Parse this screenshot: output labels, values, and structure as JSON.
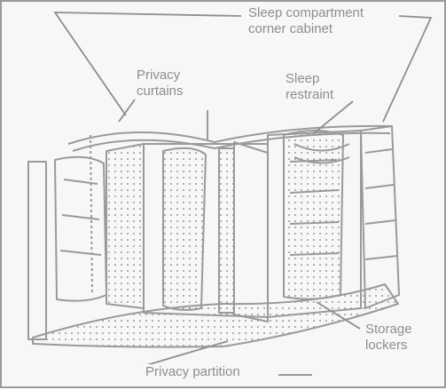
{
  "figure": {
    "labels": {
      "sleep_cabinet_line1": "Sleep compartment",
      "sleep_cabinet_line2": "corner cabinet",
      "privacy_curtains_line1": "Privacy",
      "privacy_curtains_line2": "curtains",
      "sleep_restraint_line1": "Sleep",
      "sleep_restraint_line2": "restraint",
      "storage_lockers_line1": "Storage",
      "storage_lockers_line2": "lockers",
      "privacy_partition": "Privacy partition"
    },
    "colors": {
      "background": "#f7f7f7",
      "line": "#8e8e8e",
      "frame": "#9a9a9a"
    }
  }
}
